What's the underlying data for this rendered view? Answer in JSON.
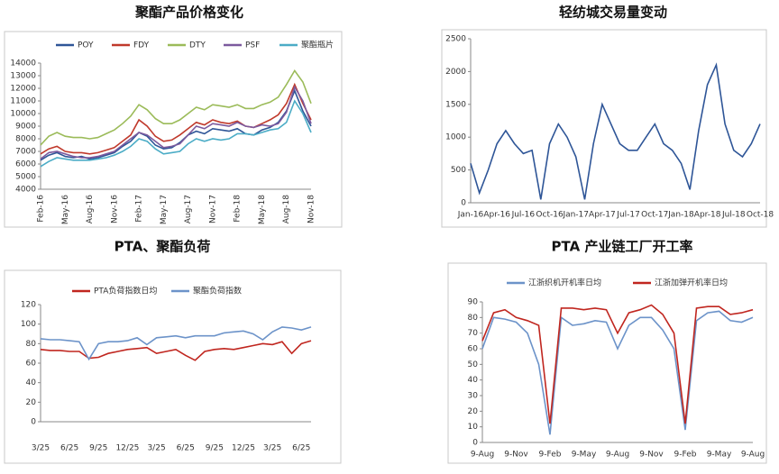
{
  "chart_data": [
    {
      "type": "line",
      "title": "聚酯产品价格变化",
      "categories": [
        "Feb-16",
        null,
        null,
        "May-16",
        null,
        null,
        "Aug-16",
        null,
        null,
        "Nov-16",
        null,
        null,
        "Feb-17",
        null,
        null,
        "May-17",
        null,
        null,
        "Aug-17",
        null,
        null,
        "Nov-17",
        null,
        null,
        "Feb-18",
        null,
        null,
        "May-18",
        null,
        null,
        "Aug-18",
        null,
        null,
        "Nov-18"
      ],
      "ylim": [
        4000,
        14000
      ],
      "yticks": [
        4000,
        5000,
        6000,
        7000,
        8000,
        9000,
        10000,
        11000,
        12000,
        13000,
        14000
      ],
      "series": [
        {
          "name": "POY",
          "color": "#2e5597",
          "values": [
            6300,
            6700,
            6900,
            6600,
            6500,
            6600,
            6400,
            6500,
            6700,
            6900,
            7400,
            7800,
            8500,
            8200,
            7500,
            7200,
            7300,
            7700,
            8300,
            8600,
            8400,
            8800,
            8700,
            8600,
            8800,
            8400,
            8300,
            8700,
            8900,
            9300,
            10200,
            11800,
            10200,
            9000
          ]
        },
        {
          "name": "FDY",
          "color": "#c0392b",
          "values": [
            6800,
            7200,
            7400,
            7000,
            6900,
            6900,
            6800,
            6900,
            7100,
            7300,
            7800,
            8300,
            9500,
            9000,
            8200,
            7800,
            7900,
            8300,
            8800,
            9300,
            9100,
            9500,
            9300,
            9200,
            9400,
            9000,
            8900,
            9200,
            9500,
            9900,
            10800,
            12300,
            10800,
            9500
          ]
        },
        {
          "name": "DTY",
          "color": "#9bbb59",
          "values": [
            7500,
            8200,
            8500,
            8200,
            8100,
            8100,
            8000,
            8100,
            8400,
            8700,
            9200,
            9800,
            10700,
            10300,
            9600,
            9200,
            9200,
            9500,
            10000,
            10500,
            10300,
            10700,
            10600,
            10500,
            10700,
            10400,
            10400,
            10700,
            10900,
            11300,
            12300,
            13400,
            12500,
            10800
          ]
        },
        {
          "name": "PSF",
          "color": "#7c5a9e",
          "values": [
            6400,
            6900,
            7000,
            6800,
            6600,
            6500,
            6500,
            6600,
            6800,
            7000,
            7500,
            8000,
            8500,
            8300,
            7800,
            7300,
            7400,
            7600,
            8300,
            9000,
            8800,
            9200,
            9100,
            9000,
            9300,
            9000,
            8900,
            9100,
            9000,
            9200,
            10100,
            12100,
            11000,
            9200
          ]
        },
        {
          "name": "聚酯瓶片",
          "color": "#4bacc6",
          "values": [
            5800,
            6200,
            6500,
            6400,
            6300,
            6300,
            6300,
            6400,
            6500,
            6700,
            7000,
            7400,
            8000,
            7800,
            7200,
            6800,
            6900,
            7000,
            7600,
            8000,
            7800,
            8000,
            7900,
            8000,
            8400,
            8400,
            8300,
            8500,
            8700,
            8800,
            9300,
            11000,
            10000,
            8500
          ]
        }
      ]
    },
    {
      "type": "line",
      "title": "轻纺城交易量变动",
      "categories": [
        "Jan-16",
        null,
        null,
        "Apr-16",
        null,
        null,
        "Jul-16",
        null,
        null,
        "Oct-16",
        null,
        null,
        "Jan-17",
        null,
        null,
        "Apr-17",
        null,
        null,
        "Jul-17",
        null,
        null,
        "Oct-17",
        null,
        null,
        "Jan-18",
        null,
        null,
        "Apr-18",
        null,
        null,
        "Jul-18",
        null,
        null,
        "Oct-18"
      ],
      "ylim": [
        0,
        2500
      ],
      "yticks": [
        0,
        500,
        1000,
        1500,
        2000,
        2500
      ],
      "series": [
        {
          "color": "#2e5597",
          "values": [
            600,
            150,
            500,
            900,
            1100,
            900,
            750,
            800,
            50,
            900,
            1200,
            1000,
            700,
            50,
            900,
            1500,
            1200,
            900,
            800,
            800,
            1000,
            1200,
            900,
            800,
            600,
            200,
            1100,
            1800,
            2100,
            1200,
            800,
            700,
            900,
            1200
          ]
        }
      ]
    },
    {
      "type": "line",
      "title": "PTA、聚酯负荷",
      "categories": [
        "3/25",
        null,
        null,
        "6/25",
        null,
        null,
        "9/25",
        null,
        null,
        "12/25",
        null,
        null,
        "3/25",
        null,
        null,
        "6/25",
        null,
        null,
        "9/25",
        null,
        null,
        "12/25",
        null,
        null,
        "3/25",
        null,
        null,
        "6/25",
        null
      ],
      "ylim": [
        0,
        120
      ],
      "yticks": [
        0,
        20,
        40,
        60,
        80,
        100,
        120
      ],
      "series": [
        {
          "name": "PTA负荷指数日均",
          "color": "#c0261f",
          "values": [
            74,
            73,
            73,
            72,
            72,
            65,
            66,
            70,
            72,
            74,
            75,
            76,
            70,
            72,
            74,
            68,
            63,
            72,
            74,
            75,
            74,
            76,
            78,
            80,
            79,
            82,
            70,
            80,
            83
          ]
        },
        {
          "name": "聚酯负荷指数",
          "color": "#6c93c9",
          "values": [
            85,
            84,
            84,
            83,
            82,
            64,
            80,
            82,
            82,
            83,
            86,
            79,
            86,
            87,
            88,
            86,
            88,
            88,
            88,
            91,
            92,
            93,
            90,
            84,
            92,
            97,
            96,
            94,
            97
          ]
        }
      ]
    },
    {
      "type": "line",
      "title": "PTA 产业链工厂开工率",
      "categories": [
        "9-Aug",
        null,
        null,
        "9-Nov",
        null,
        null,
        "9-Feb",
        null,
        null,
        "9-May",
        null,
        null,
        "9-Aug",
        null,
        null,
        "9-Nov",
        null,
        null,
        "9-Feb",
        null,
        null,
        "9-May",
        null,
        null,
        "9-Aug"
      ],
      "ylim": [
        0,
        90
      ],
      "yticks": [
        0,
        10,
        20,
        30,
        40,
        50,
        60,
        70,
        80,
        90
      ],
      "series": [
        {
          "name": "江浙织机开机率日均",
          "color": "#6c93c9",
          "values": [
            60,
            80,
            79,
            77,
            70,
            50,
            5,
            80,
            75,
            76,
            78,
            77,
            60,
            75,
            80,
            80,
            72,
            60,
            8,
            78,
            83,
            84,
            78,
            77,
            80
          ]
        },
        {
          "name": "江浙加弹开机率日均",
          "color": "#c0261f",
          "values": [
            65,
            83,
            85,
            80,
            78,
            75,
            12,
            86,
            86,
            85,
            86,
            85,
            70,
            83,
            85,
            88,
            82,
            70,
            12,
            86,
            87,
            87,
            82,
            83,
            85
          ]
        }
      ]
    }
  ]
}
